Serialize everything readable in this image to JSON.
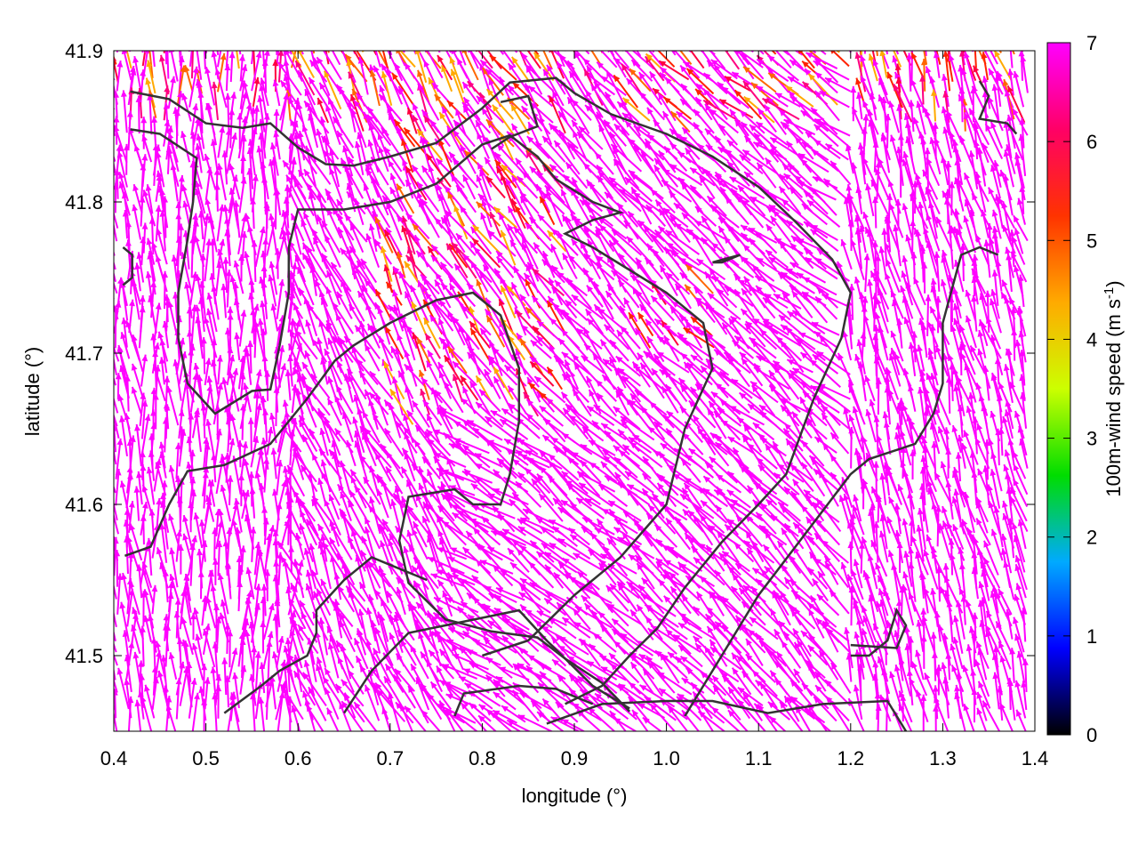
{
  "chart_data": {
    "type": "vector-field",
    "xlabel": "longitude (°)",
    "ylabel": "latitude (°)",
    "xlim": [
      0.4,
      1.4
    ],
    "ylim": [
      41.45,
      41.9
    ],
    "xticks": [
      "0.4",
      "0.5",
      "0.6",
      "0.7",
      "0.8",
      "0.9",
      "1.0",
      "1.1",
      "1.2",
      "1.3",
      "1.4"
    ],
    "yticks": [
      "41.5",
      "41.6",
      "41.7",
      "41.8",
      "41.9"
    ],
    "colorbar": {
      "label": "100m-wind speed (m s",
      "label_sup": "-1",
      "label_tail": ")",
      "range": [
        0,
        7
      ],
      "ticks": [
        "0",
        "1",
        "2",
        "3",
        "4",
        "5",
        "6",
        "7"
      ],
      "palette": [
        "#000000",
        "#0000ff",
        "#00aaff",
        "#00dd00",
        "#ccff00",
        "#ffaa00",
        "#ff3300",
        "#ff0066",
        "#ff00ff"
      ]
    },
    "vector_color": "#ff00ff",
    "contour_color": "#333333",
    "contours": [
      [
        [
          0.418,
          41.873
        ],
        [
          0.46,
          41.868
        ],
        [
          0.5,
          41.852
        ],
        [
          0.54,
          41.849
        ],
        [
          0.57,
          41.852
        ],
        [
          0.6,
          41.836
        ],
        [
          0.63,
          41.825
        ],
        [
          0.66,
          41.824
        ],
        [
          0.7,
          41.83
        ],
        [
          0.75,
          41.839
        ],
        [
          0.8,
          41.862
        ],
        [
          0.83,
          41.879
        ],
        [
          0.88,
          41.882
        ],
        [
          0.9,
          41.872
        ],
        [
          0.94,
          41.858
        ],
        [
          1.0,
          41.845
        ],
        [
          1.05,
          41.83
        ],
        [
          1.1,
          41.81
        ],
        [
          1.14,
          41.787
        ],
        [
          1.18,
          41.762
        ],
        [
          1.2,
          41.74
        ],
        [
          1.19,
          41.71
        ],
        [
          1.16,
          41.67
        ],
        [
          1.13,
          41.62
        ],
        [
          1.1,
          41.6
        ],
        [
          1.06,
          41.575
        ],
        [
          1.02,
          41.545
        ],
        [
          0.99,
          41.518
        ],
        [
          0.96,
          41.5
        ],
        [
          0.93,
          41.48
        ],
        [
          0.89,
          41.468
        ]
      ],
      [
        [
          0.418,
          41.848
        ],
        [
          0.45,
          41.845
        ],
        [
          0.49,
          41.829
        ],
        [
          0.486,
          41.8
        ],
        [
          0.48,
          41.775
        ],
        [
          0.47,
          41.74
        ],
        [
          0.47,
          41.71
        ],
        [
          0.48,
          41.68
        ],
        [
          0.51,
          41.66
        ],
        [
          0.55,
          41.675
        ],
        [
          0.57,
          41.676
        ],
        [
          0.58,
          41.705
        ],
        [
          0.59,
          41.74
        ],
        [
          0.59,
          41.77
        ],
        [
          0.6,
          41.795
        ],
        [
          0.65,
          41.795
        ],
        [
          0.7,
          41.8
        ],
        [
          0.75,
          41.812
        ],
        [
          0.8,
          41.838
        ],
        [
          0.83,
          41.844
        ],
        [
          0.86,
          41.83
        ],
        [
          0.88,
          41.815
        ],
        [
          0.92,
          41.8
        ],
        [
          0.95,
          41.793
        ],
        [
          0.92,
          41.788
        ],
        [
          0.89,
          41.779
        ],
        [
          0.92,
          41.77
        ],
        [
          0.96,
          41.755
        ],
        [
          1.0,
          41.74
        ],
        [
          1.04,
          41.72
        ],
        [
          1.05,
          41.69
        ],
        [
          1.02,
          41.65
        ],
        [
          1.0,
          41.6
        ],
        [
          0.95,
          41.565
        ],
        [
          0.9,
          41.54
        ],
        [
          0.85,
          41.51
        ],
        [
          0.8,
          41.5
        ]
      ],
      [
        [
          0.412,
          41.566
        ],
        [
          0.44,
          41.572
        ],
        [
          0.46,
          41.6
        ],
        [
          0.48,
          41.622
        ],
        [
          0.52,
          41.626
        ],
        [
          0.57,
          41.64
        ],
        [
          0.61,
          41.67
        ],
        [
          0.64,
          41.695
        ],
        [
          0.66,
          41.705
        ],
        [
          0.7,
          41.72
        ],
        [
          0.75,
          41.735
        ],
        [
          0.79,
          41.74
        ],
        [
          0.82,
          41.725
        ],
        [
          0.84,
          41.69
        ],
        [
          0.84,
          41.655
        ],
        [
          0.83,
          41.62
        ],
        [
          0.82,
          41.6
        ],
        [
          0.79,
          41.6
        ],
        [
          0.77,
          41.61
        ],
        [
          0.72,
          41.605
        ],
        [
          0.71,
          41.576
        ],
        [
          0.72,
          41.548
        ],
        [
          0.76,
          41.524
        ],
        [
          0.81,
          41.516
        ],
        [
          0.86,
          41.512
        ],
        [
          0.89,
          41.498
        ],
        [
          0.93,
          41.482
        ],
        [
          0.96,
          41.463
        ]
      ],
      [
        [
          0.52,
          41.462
        ],
        [
          0.56,
          41.48
        ],
        [
          0.58,
          41.49
        ],
        [
          0.61,
          41.5
        ],
        [
          0.62,
          41.515
        ],
        [
          0.62,
          41.53
        ],
        [
          0.65,
          41.55
        ],
        [
          0.68,
          41.565
        ],
        [
          0.72,
          41.555
        ],
        [
          0.74,
          41.55
        ]
      ],
      [
        [
          0.65,
          41.462
        ],
        [
          0.68,
          41.49
        ],
        [
          0.72,
          41.515
        ],
        [
          0.76,
          41.52
        ],
        [
          0.8,
          41.525
        ],
        [
          0.84,
          41.53
        ],
        [
          0.87,
          41.51
        ],
        [
          0.92,
          41.48
        ],
        [
          0.96,
          41.465
        ]
      ],
      [
        [
          0.77,
          41.46
        ],
        [
          0.78,
          41.475
        ],
        [
          0.84,
          41.48
        ],
        [
          0.88,
          41.478
        ],
        [
          0.92,
          41.468
        ]
      ],
      [
        [
          1.02,
          41.46
        ],
        [
          1.06,
          41.5
        ],
        [
          1.1,
          41.54
        ],
        [
          1.15,
          41.58
        ],
        [
          1.2,
          41.62
        ],
        [
          1.22,
          41.63
        ],
        [
          1.27,
          41.64
        ],
        [
          1.29,
          41.66
        ],
        [
          1.3,
          41.68
        ],
        [
          1.3,
          41.72
        ],
        [
          1.32,
          41.765
        ],
        [
          1.34,
          41.77
        ],
        [
          1.36,
          41.765
        ]
      ],
      [
        [
          0.87,
          41.455
        ],
        [
          0.93,
          41.468
        ],
        [
          1.0,
          41.47
        ],
        [
          1.05,
          41.47
        ],
        [
          1.11,
          41.462
        ],
        [
          1.17,
          41.468
        ],
        [
          1.24,
          41.47
        ],
        [
          1.26,
          41.45
        ]
      ],
      [
        [
          1.2,
          41.507
        ],
        [
          1.25,
          41.505
        ],
        [
          1.26,
          41.52
        ],
        [
          1.25,
          41.53
        ],
        [
          1.24,
          41.51
        ],
        [
          1.22,
          41.5
        ],
        [
          1.2,
          41.5
        ]
      ],
      [
        [
          1.34,
          41.88
        ],
        [
          1.35,
          41.87
        ],
        [
          1.34,
          41.855
        ],
        [
          1.37,
          41.852
        ],
        [
          1.38,
          41.845
        ]
      ],
      [
        [
          0.82,
          41.866
        ],
        [
          0.85,
          41.87
        ],
        [
          0.86,
          41.85
        ],
        [
          0.83,
          41.843
        ],
        [
          0.81,
          41.835
        ]
      ],
      [
        [
          0.41,
          41.77
        ],
        [
          0.42,
          41.765
        ],
        [
          0.42,
          41.75
        ],
        [
          0.41,
          41.745
        ]
      ],
      [
        [
          1.05,
          41.76
        ],
        [
          1.08,
          41.765
        ],
        [
          1.06,
          41.76
        ],
        [
          1.05,
          41.76
        ]
      ]
    ]
  }
}
